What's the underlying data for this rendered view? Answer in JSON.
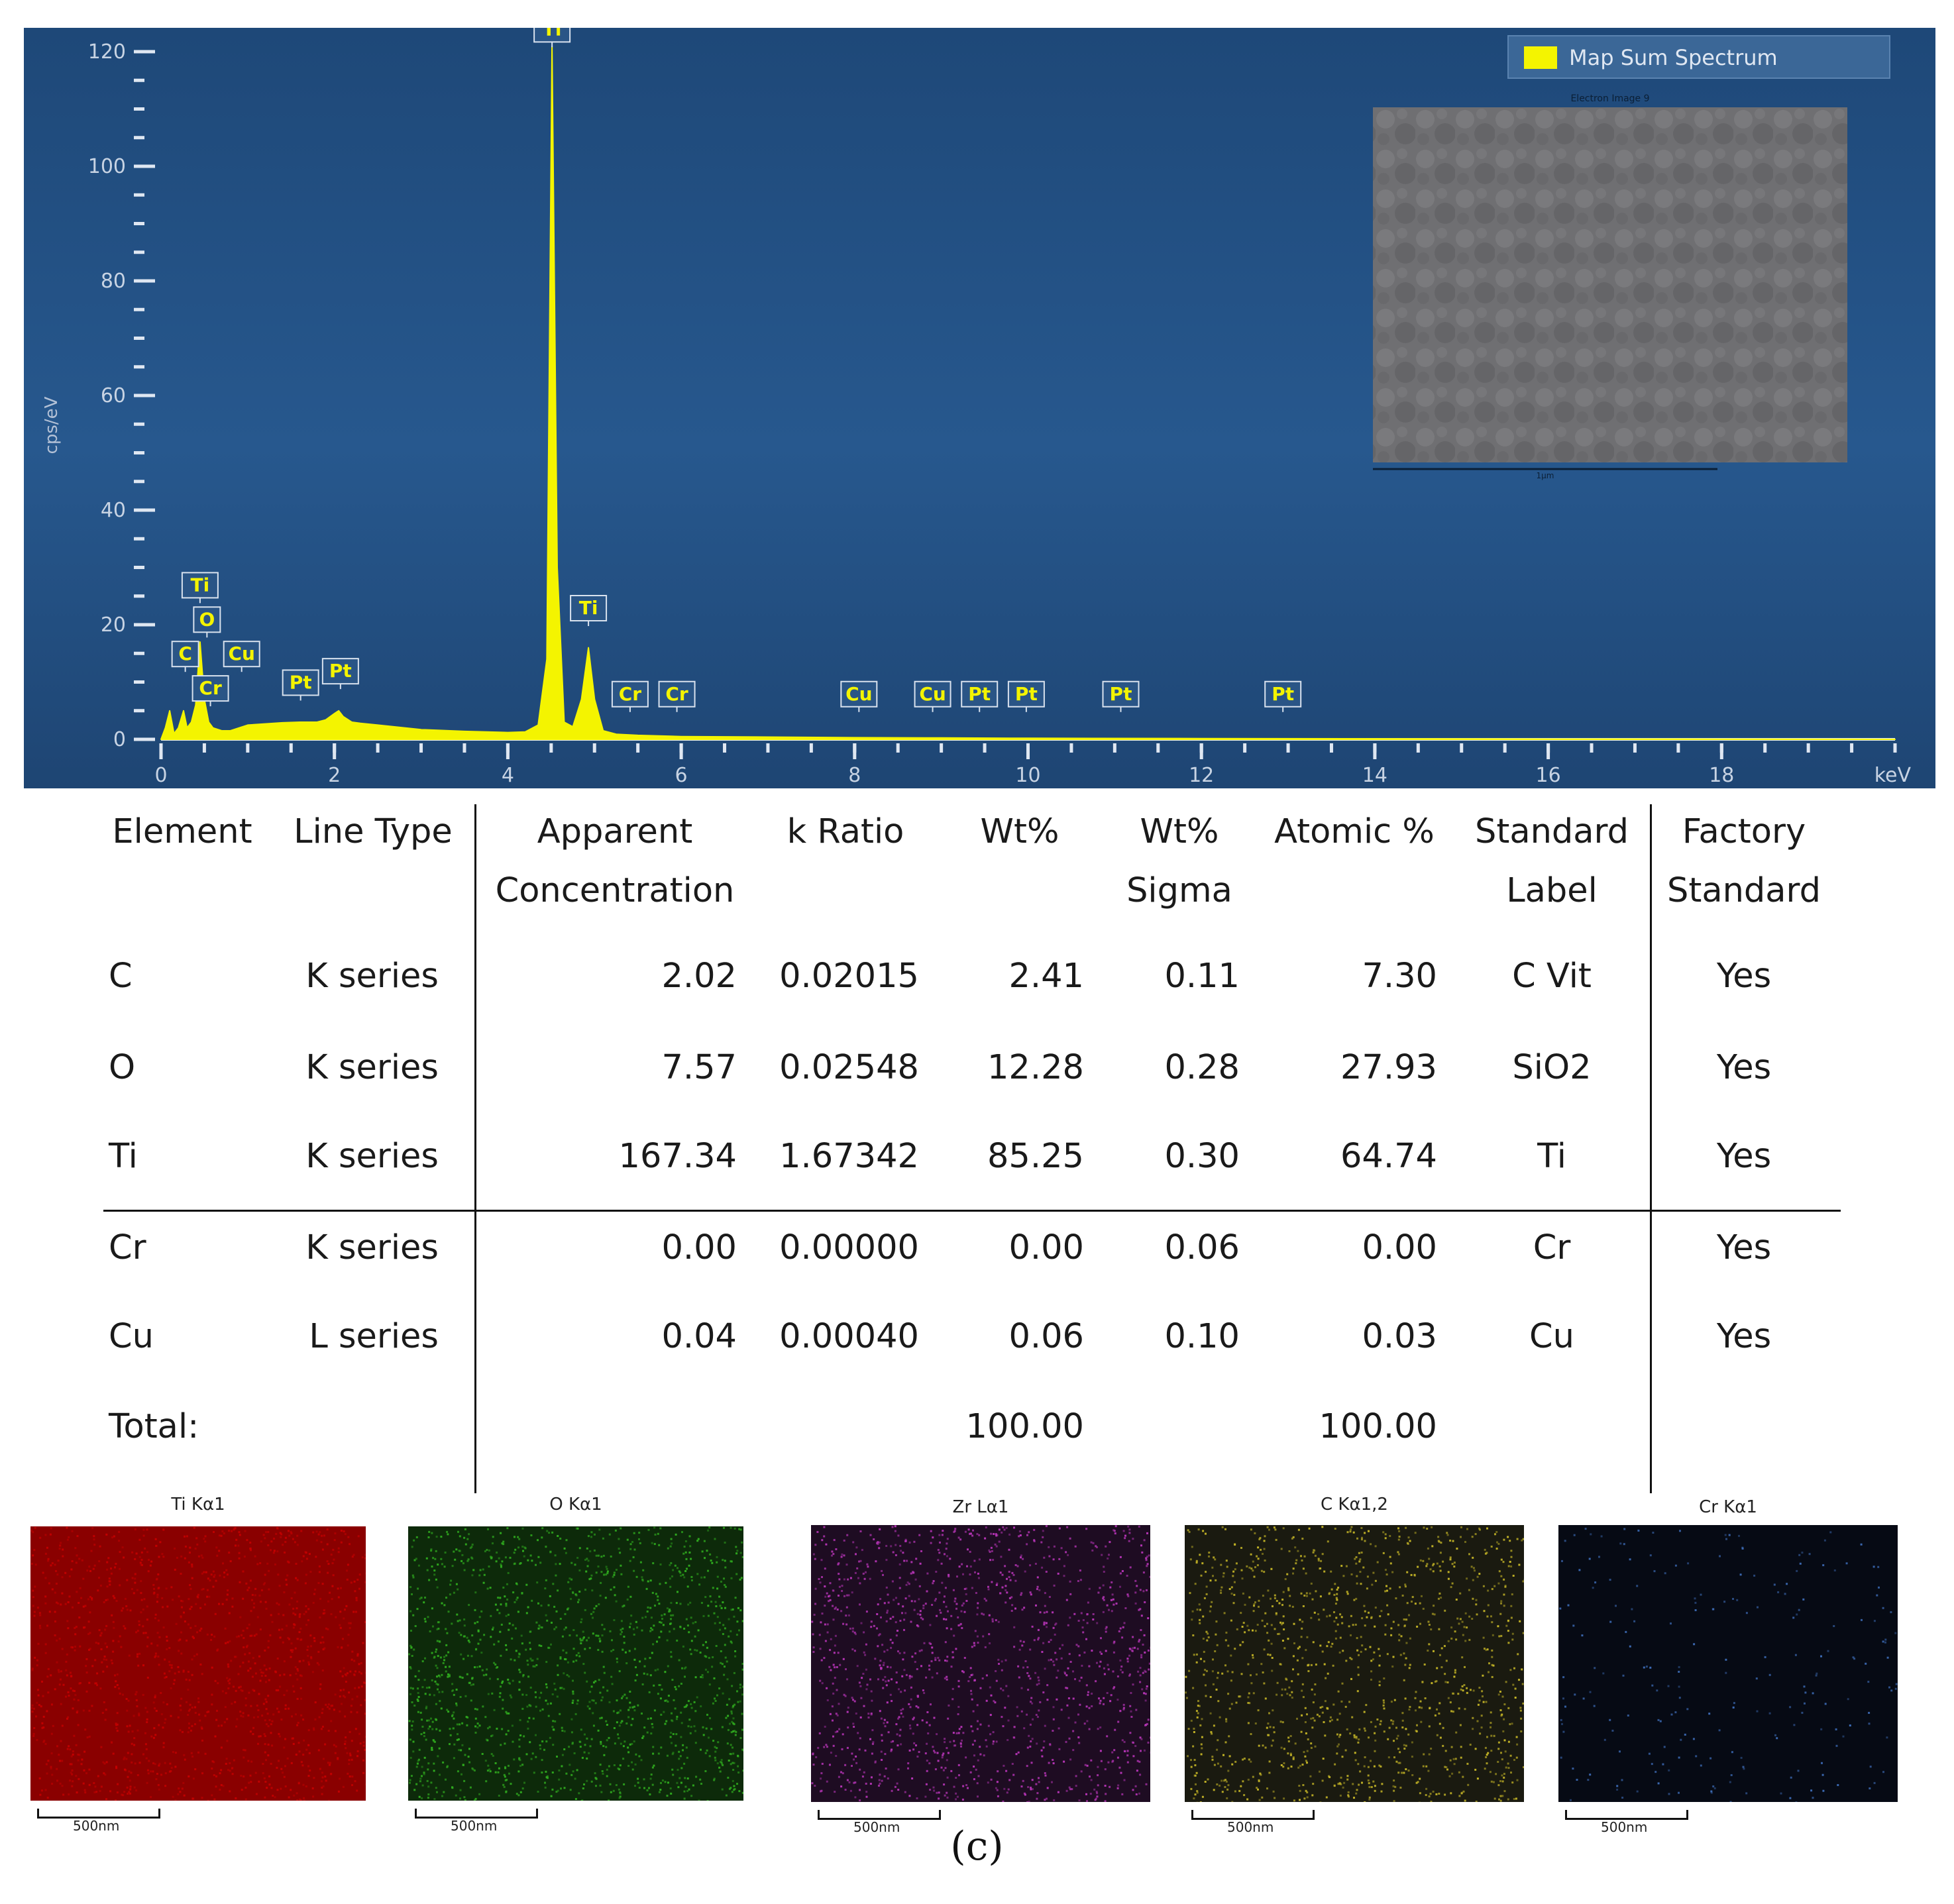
{
  "chart_data": {
    "type": "line",
    "title": "",
    "xlabel": "keV",
    "ylabel": "cps/eV",
    "xlim": [
      0,
      20
    ],
    "ylim": [
      0,
      120
    ],
    "x_ticks": [
      "0",
      "2",
      "4",
      "6",
      "8",
      "10",
      "12",
      "14",
      "16",
      "18"
    ],
    "y_ticks": [
      "0",
      "20",
      "40",
      "60",
      "80",
      "100",
      "120"
    ],
    "legend": "Map Sum Spectrum",
    "legend_position": "top-right",
    "series": [
      {
        "name": "Map Sum Spectrum",
        "color": "#f4f400",
        "x": [
          0.0,
          0.05,
          0.1,
          0.15,
          0.2,
          0.26,
          0.3,
          0.35,
          0.4,
          0.45,
          0.5,
          0.55,
          0.6,
          0.7,
          0.8,
          1.0,
          1.2,
          1.4,
          1.6,
          1.8,
          1.9,
          2.0,
          2.05,
          2.1,
          2.2,
          2.3,
          2.5,
          3.0,
          3.5,
          4.0,
          4.2,
          4.35,
          4.45,
          4.51,
          4.57,
          4.65,
          4.75,
          4.85,
          4.93,
          5.0,
          5.1,
          5.25,
          5.5,
          6.0,
          7.0,
          8.0,
          9.0,
          10.0,
          12.0,
          14.0,
          16.0,
          18.0,
          20.0
        ],
        "values": [
          0,
          2,
          5,
          1,
          2,
          5,
          2,
          3,
          6,
          17,
          7,
          3,
          2,
          1.5,
          1.5,
          2.5,
          2.7,
          2.9,
          3.0,
          3.0,
          3.4,
          4.5,
          5.0,
          4.0,
          3.0,
          2.8,
          2.5,
          1.7,
          1.4,
          1.2,
          1.3,
          2.5,
          14,
          121,
          30,
          3,
          2.2,
          7,
          16,
          7,
          1.5,
          0.9,
          0.7,
          0.5,
          0.4,
          0.3,
          0.25,
          0.2,
          0.15,
          0.1,
          0.05,
          0.03,
          0.0
        ]
      }
    ],
    "peak_labels": [
      {
        "label": "Ti",
        "x": 0.45,
        "y": 24
      },
      {
        "label": "O",
        "x": 0.53,
        "y": 18
      },
      {
        "label": "C",
        "x": 0.28,
        "y": 12
      },
      {
        "label": "Cu",
        "x": 0.93,
        "y": 12
      },
      {
        "label": "Cr",
        "x": 0.57,
        "y": 6
      },
      {
        "label": "Pt",
        "x": 1.61,
        "y": 7
      },
      {
        "label": "Pt",
        "x": 2.07,
        "y": 9
      },
      {
        "label": "Ti",
        "x": 4.51,
        "y": 121
      },
      {
        "label": "Ti",
        "x": 4.93,
        "y": 20
      },
      {
        "label": "Cr",
        "x": 5.41,
        "y": 5
      },
      {
        "label": "Cr",
        "x": 5.95,
        "y": 5
      },
      {
        "label": "Cu",
        "x": 8.05,
        "y": 5
      },
      {
        "label": "Cu",
        "x": 8.9,
        "y": 5
      },
      {
        "label": "Pt",
        "x": 9.44,
        "y": 5
      },
      {
        "label": "Pt",
        "x": 9.98,
        "y": 5
      },
      {
        "label": "Pt",
        "x": 11.07,
        "y": 5
      },
      {
        "label": "Pt",
        "x": 12.94,
        "y": 5
      }
    ],
    "inset": {
      "title": "Electron Image 9",
      "scale": "1μm"
    }
  },
  "table": {
    "headers": [
      "Element",
      "Line Type",
      "Apparent Concentration",
      "k Ratio",
      "Wt%",
      "Wt% Sigma",
      "Atomic %",
      "Standard Label",
      "Factory Standard"
    ],
    "rows": [
      [
        "C",
        "K series",
        "2.02",
        "0.02015",
        "2.41",
        "0.11",
        "7.30",
        "C Vit",
        "Yes"
      ],
      [
        "O",
        "K series",
        "7.57",
        "0.02548",
        "12.28",
        "0.28",
        "27.93",
        "SiO2",
        "Yes"
      ],
      [
        "Ti",
        "K series",
        "167.34",
        "1.67342",
        "85.25",
        "0.30",
        "64.74",
        "Ti",
        "Yes"
      ],
      [
        "Cr",
        "K series",
        "0.00",
        "0.00000",
        "0.00",
        "0.06",
        "0.00",
        "Cr",
        "Yes"
      ],
      [
        "Cu",
        "L series",
        "0.04",
        "0.00040",
        "0.06",
        "0.10",
        "0.03",
        "Cu",
        "Yes"
      ]
    ],
    "total": {
      "label": "Total:",
      "wt": "100.00",
      "atomic": "100.00"
    }
  },
  "maps": [
    {
      "title": "Ti Kα1",
      "scale": "500nm",
      "color": "#c40000",
      "base": "#8a0000"
    },
    {
      "title": "O Kα1",
      "scale": "500nm",
      "color": "#2faa1e",
      "base": "#0d2a0a"
    },
    {
      "title": "Zr Lα1",
      "scale": "500nm",
      "color": "#b534b5",
      "base": "#1e0c22"
    },
    {
      "title": "C Kα1,2",
      "scale": "500nm",
      "color": "#c2b326",
      "base": "#1a1a10"
    },
    {
      "title": "Cr Kα1",
      "scale": "500nm",
      "color": "#3c6ab4",
      "base": "#060a14"
    }
  ],
  "caption": "(c)"
}
